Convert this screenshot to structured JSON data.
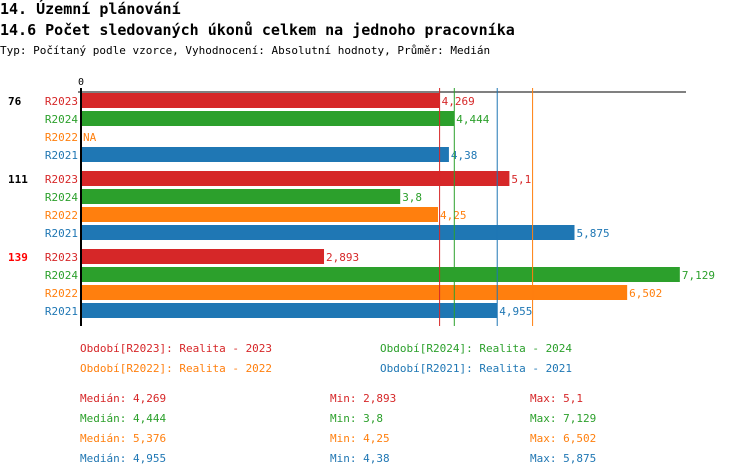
{
  "header": {
    "section": "14. Územní plánování",
    "title": "14.6 Počet sledovaných úkonů celkem na jednoho pracovníka",
    "subtitle": "Typ: Počítaný podle vzorce, Vyhodnocení: Absolutní hodnoty, Průměr: Medián"
  },
  "chart_data": {
    "type": "bar",
    "orientation": "horizontal",
    "axis_tick": "0",
    "xlim": [
      0,
      7.2
    ],
    "groups": [
      {
        "label": "76",
        "color": "#000000",
        "rows": [
          {
            "series": "R2023",
            "value": 4.269,
            "label": "4,269"
          },
          {
            "series": "R2024",
            "value": 4.444,
            "label": "4,444"
          },
          {
            "series": "R2022",
            "value": null,
            "label": "NA"
          },
          {
            "series": "R2021",
            "value": 4.38,
            "label": "4,38"
          }
        ]
      },
      {
        "label": "111",
        "color": "#000000",
        "rows": [
          {
            "series": "R2023",
            "value": 5.1,
            "label": "5,1"
          },
          {
            "series": "R2024",
            "value": 3.8,
            "label": "3,8"
          },
          {
            "series": "R2022",
            "value": 4.25,
            "label": "4,25"
          },
          {
            "series": "R2021",
            "value": 5.875,
            "label": "5,875"
          }
        ]
      },
      {
        "label": "139",
        "color": "#ff0000",
        "rows": [
          {
            "series": "R2023",
            "value": 2.893,
            "label": "2,893"
          },
          {
            "series": "R2024",
            "value": 7.129,
            "label": "7,129"
          },
          {
            "series": "R2022",
            "value": 6.502,
            "label": "6,502"
          },
          {
            "series": "R2021",
            "value": 4.955,
            "label": "4,955"
          }
        ]
      }
    ],
    "series_colors": {
      "R2023": "#d62728",
      "R2024": "#2ca02c",
      "R2022": "#ff7f0e",
      "R2021": "#1f77b4"
    },
    "median_lines": [
      {
        "series": "R2023",
        "value": 4.269
      },
      {
        "series": "R2024",
        "value": 4.444
      },
      {
        "series": "R2021",
        "value": 4.955
      },
      {
        "series": "R2022",
        "value": 5.376
      }
    ]
  },
  "legend": [
    {
      "text": "Období[R2023]: Realita - 2023",
      "color": "#d62728"
    },
    {
      "text": "Období[R2024]: Realita - 2024",
      "color": "#2ca02c"
    },
    {
      "text": "Období[R2022]: Realita - 2022",
      "color": "#ff7f0e"
    },
    {
      "text": "Období[R2021]: Realita - 2021",
      "color": "#1f77b4"
    }
  ],
  "stats": [
    {
      "median": "Medián: 4,269",
      "min": "Min: 2,893",
      "max": "Max: 5,1",
      "color": "#d62728"
    },
    {
      "median": "Medián: 4,444",
      "min": "Min: 3,8",
      "max": "Max: 7,129",
      "color": "#2ca02c"
    },
    {
      "median": "Medián: 5,376",
      "min": "Min: 4,25",
      "max": "Max: 6,502",
      "color": "#ff7f0e"
    },
    {
      "median": "Medián: 4,955",
      "min": "Min: 4,38",
      "max": "Max: 5,875",
      "color": "#1f77b4"
    }
  ]
}
